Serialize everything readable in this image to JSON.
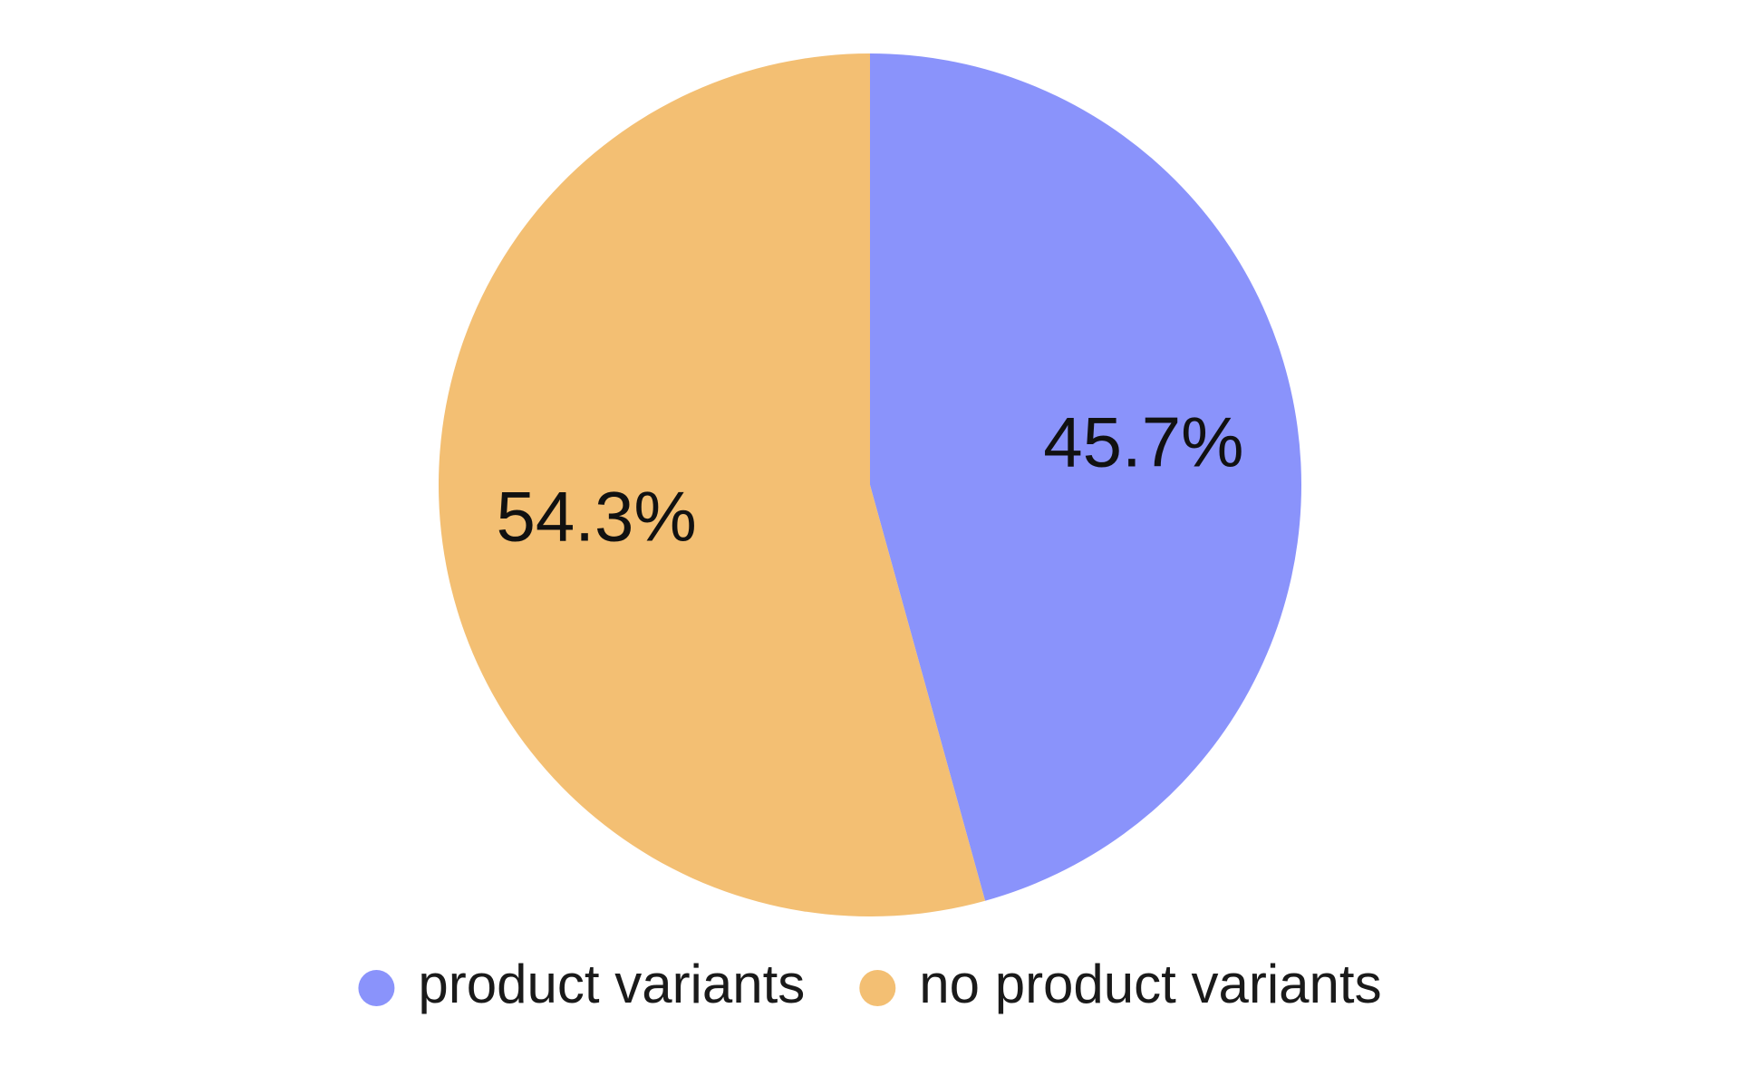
{
  "chart_data": {
    "type": "pie",
    "categories": [
      "product variants",
      "no product variants"
    ],
    "values": [
      45.7,
      54.3
    ],
    "value_labels": [
      "45.7%",
      "54.3%"
    ],
    "colors": [
      "#8a93fb",
      "#f3bf73"
    ],
    "legend": "bottom"
  }
}
